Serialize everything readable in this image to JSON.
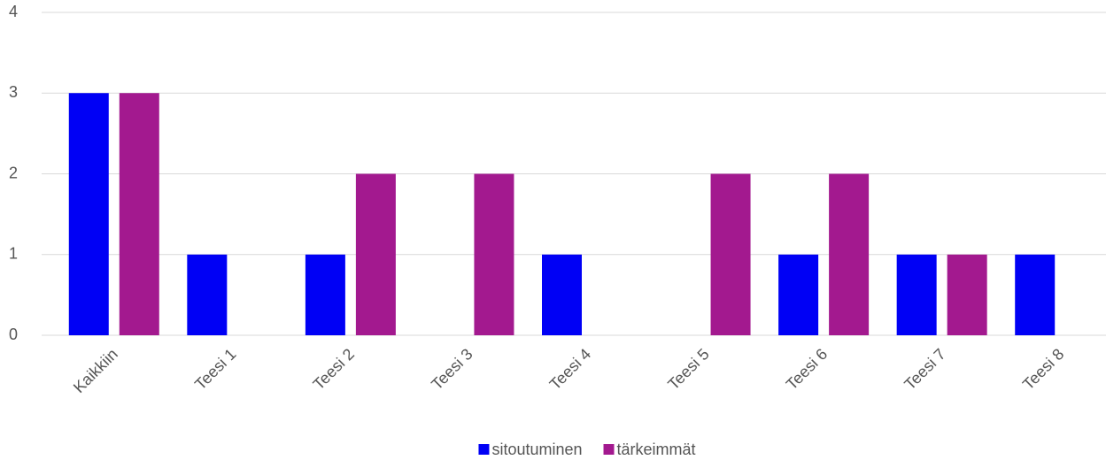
{
  "chart_data": {
    "type": "bar",
    "categories": [
      "Kaikkiin",
      "Teesi 1",
      "Teesi 2",
      "Teesi 3",
      "Teesi 4",
      "Teesi 5",
      "Teesi 6",
      "Teesi 7",
      "Teesi 8"
    ],
    "series": [
      {
        "name": "sitoutuminen",
        "color": "#0000f5",
        "values": [
          3,
          1,
          1,
          0,
          1,
          0,
          1,
          1,
          1
        ]
      },
      {
        "name": "tärkeimmät",
        "color": "#a3198f",
        "values": [
          3,
          0,
          2,
          2,
          0,
          2,
          2,
          1,
          0
        ]
      }
    ],
    "ylim": [
      0,
      4
    ],
    "yticks": [
      0,
      1,
      2,
      3,
      4
    ],
    "grid": true,
    "legend": "bottom"
  }
}
